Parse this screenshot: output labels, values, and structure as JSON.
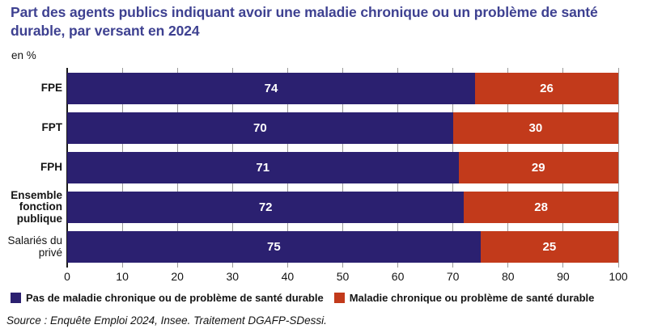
{
  "title": "Part des agents publics indiquant avoir une maladie chronique ou un problème de santé durable, par versant en 2024",
  "unit_label": "en %",
  "source": "Source : Enquête Emploi 2024, Insee. Traitement DGAFP-SDessi.",
  "colors": {
    "title": "#3e4191",
    "navy": "#2b2070",
    "red": "#c23a1b",
    "grid": "#9a9a9a",
    "axis": "#1a1a1a",
    "value_label": "#ffffff"
  },
  "chart_data": {
    "type": "bar",
    "orientation": "horizontal",
    "stacked": true,
    "categories": [
      "FPE",
      "FPT",
      "FPH",
      "Ensemble fonction publique",
      "Salariés du privé"
    ],
    "category_weight": [
      "medium",
      "medium",
      "medium",
      "bold",
      "regular"
    ],
    "series": [
      {
        "name": "Pas de maladie chronique ou de problème de santé durable",
        "color": "#2b2070",
        "values": [
          74,
          70,
          71,
          72,
          75
        ]
      },
      {
        "name": "Maladie chronique ou problème de santé durable",
        "color": "#c23a1b",
        "values": [
          26,
          30,
          29,
          28,
          25
        ]
      }
    ],
    "xlim": [
      0,
      100
    ],
    "x_ticks": [
      0,
      10,
      20,
      30,
      40,
      50,
      60,
      70,
      80,
      90,
      100
    ],
    "grid": true,
    "legend_position": "bottom"
  }
}
